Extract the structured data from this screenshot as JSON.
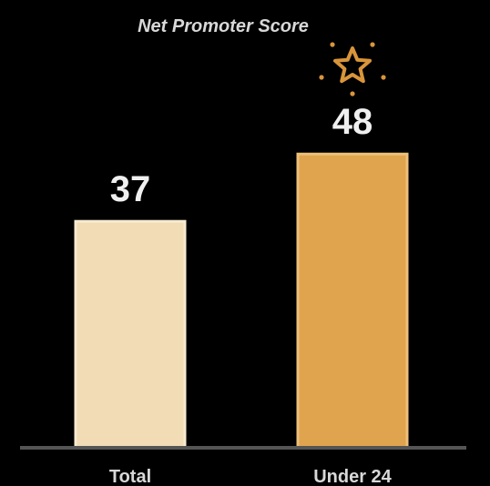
{
  "chart_data": {
    "type": "bar",
    "title": "Net Promoter Score",
    "categories": [
      "Total",
      "Under 24"
    ],
    "values": [
      37,
      48
    ],
    "ylim": [
      0,
      58
    ],
    "grid": false,
    "legend": "none",
    "highlight_category": "Under 24",
    "highlight_icon": "star-icon",
    "colors": {
      "background": "#000000",
      "bars": [
        "#f1dcb6",
        "#e0a44e"
      ],
      "bar_borders": [
        "#f7ead0",
        "#edc07a"
      ],
      "baseline": "#555555",
      "text": "#f0f0f0",
      "star": "#d9953a"
    }
  }
}
